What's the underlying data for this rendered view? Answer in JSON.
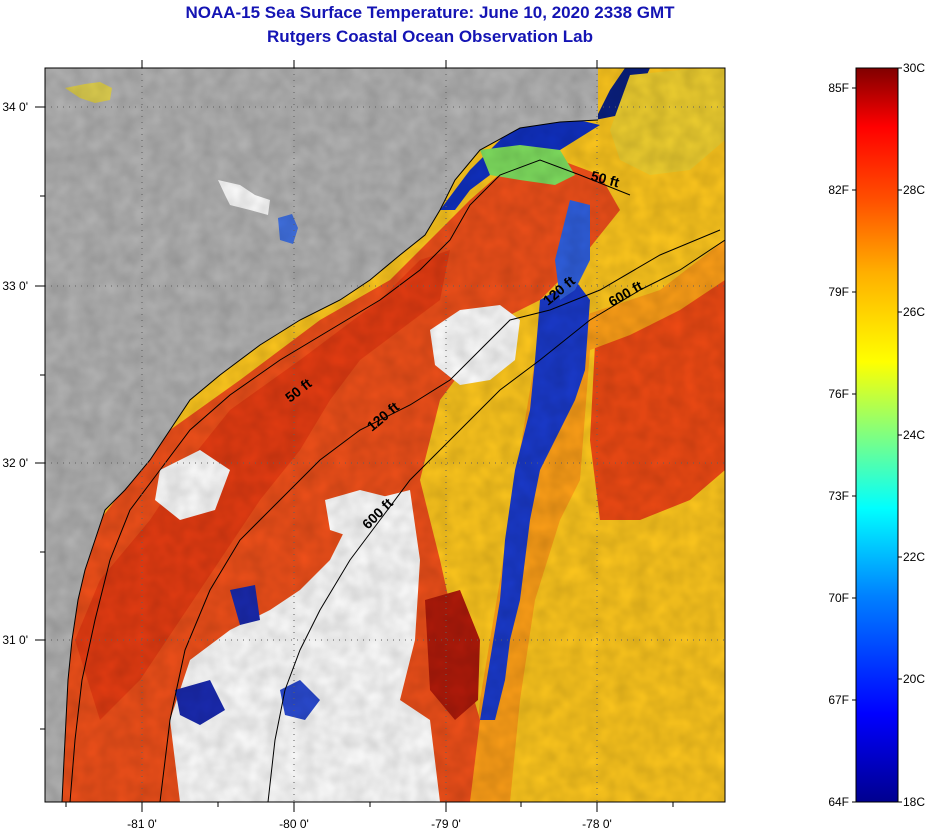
{
  "header": {
    "title": "NOAA-15 Sea Surface Temperature:  June 10, 2020 2338 GMT",
    "subtitle": "Rutgers Coastal Ocean Observation Lab"
  },
  "axes": {
    "x_ticks": [
      "-81 0'",
      "-80 0'",
      "-79 0'",
      "-78 0'"
    ],
    "y_ticks": [
      "34 0'",
      "33 0'",
      "32 0'",
      "31 0'"
    ]
  },
  "contours": [
    {
      "label": "50 ft"
    },
    {
      "label": "50 ft"
    },
    {
      "label": "120 ft"
    },
    {
      "label": "120 ft"
    },
    {
      "label": "600 ft"
    },
    {
      "label": "600 ft"
    }
  ],
  "colorbar": {
    "fahrenheit_labels": [
      "85F",
      "82F",
      "79F",
      "76F",
      "73F",
      "70F",
      "67F",
      "64F"
    ],
    "celsius_labels": [
      "30C",
      "28C",
      "26C",
      "24C",
      "22C",
      "20C",
      "18C"
    ],
    "range_c": [
      18,
      30
    ],
    "colors": [
      "#00008f",
      "#0000ff",
      "#0080ff",
      "#00ffff",
      "#80ff80",
      "#ffff00",
      "#ffb000",
      "#ff5000",
      "#ff0000",
      "#800000"
    ]
  },
  "map_colors": {
    "land": "#b4b4b4",
    "cloud": "#ffffff",
    "warm": "#f03a10",
    "mid": "#ff9a10",
    "shelf": "#ffd020",
    "cool": "#1838c8"
  }
}
